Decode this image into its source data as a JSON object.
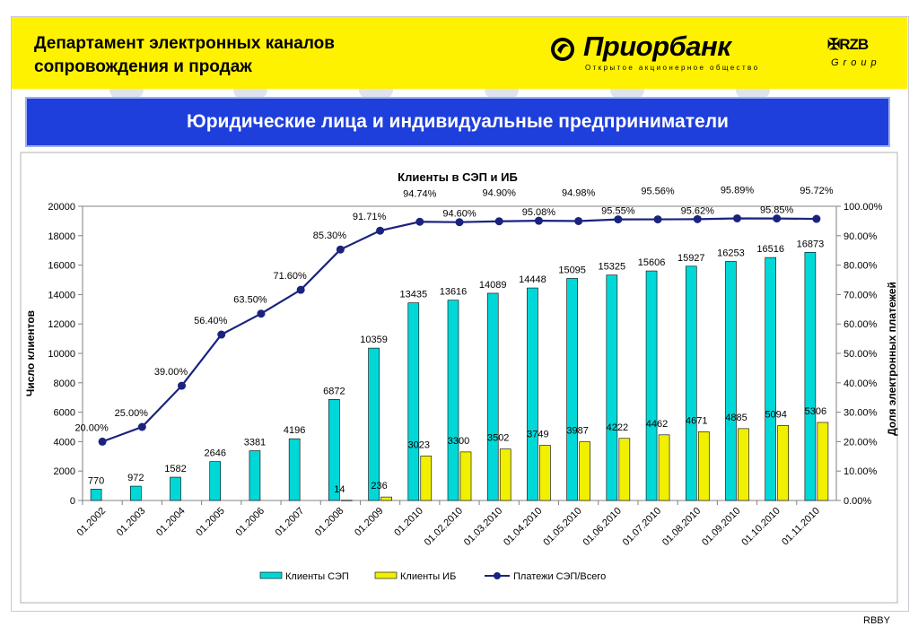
{
  "header": {
    "department": "Департамент электронных каналов сопровождения и продаж",
    "logo_name": "Приорбанк",
    "logo_subtitle": "Открытое акционерное общество",
    "partner_logo": "RZB",
    "partner_group": "Group",
    "logo_icon": "priorbank-emblem-icon",
    "partner_icon": "rzb-cross-icon"
  },
  "banner": {
    "title": "Юридические лица и индивидуальные предприниматели"
  },
  "footer": {
    "text": "RBBY"
  },
  "colors": {
    "header_bg": "#fff200",
    "banner_bg": "#1f3fdc",
    "bar_sep": "#00d8d8",
    "bar_ib": "#f0f000",
    "line": "#1a237e"
  },
  "chart_data": {
    "type": "bar",
    "title": "Клиенты в СЭП и ИБ",
    "ylabel": "Число клиентов",
    "y2label": "Доля электронных платежей",
    "ylim": [
      0,
      20000
    ],
    "yticks": [
      "0",
      "2000",
      "4000",
      "6000",
      "8000",
      "10000",
      "12000",
      "14000",
      "16000",
      "18000",
      "20000"
    ],
    "y2lim": [
      0,
      100
    ],
    "y2ticks": [
      "0.00%",
      "10.00%",
      "20.00%",
      "30.00%",
      "40.00%",
      "50.00%",
      "60.00%",
      "70.00%",
      "80.00%",
      "90.00%",
      "100.00%"
    ],
    "categories": [
      "01.2002",
      "01.2003",
      "01.2004",
      "01.2005",
      "01.2006",
      "01.2007",
      "01.2008",
      "01.2009",
      "01.2010",
      "01.02.2010",
      "01.03.2010",
      "01.04.2010",
      "01.05.2010",
      "01.06.2010",
      "01.07.2010",
      "01.08.2010",
      "01.09.2010",
      "01.10.2010",
      "01.11.2010"
    ],
    "series": [
      {
        "name": "Клиенты СЭП",
        "kind": "bar",
        "values": [
          770,
          972,
          1582,
          2646,
          3381,
          4196,
          6872,
          10359,
          13435,
          13616,
          14089,
          14448,
          15095,
          15325,
          15606,
          15927,
          16253,
          16516,
          16873
        ]
      },
      {
        "name": "Клиенты ИБ",
        "kind": "bar",
        "values": [
          null,
          null,
          null,
          null,
          null,
          null,
          14,
          236,
          3023,
          3300,
          3502,
          3749,
          3987,
          4222,
          4462,
          4671,
          4885,
          5094,
          5306
        ]
      },
      {
        "name": "Платежи СЭП/Всего",
        "kind": "line",
        "axis": "right",
        "values": [
          20.0,
          25.0,
          39.0,
          56.4,
          63.5,
          71.6,
          85.3,
          91.71,
          94.74,
          94.6,
          94.9,
          95.08,
          94.98,
          95.55,
          95.56,
          95.62,
          95.89,
          95.85,
          95.72
        ],
        "labels": [
          "20.00%",
          "25.00%",
          "39.00%",
          "56.40%",
          "63.50%",
          "71.60%",
          "85.30%",
          "91.71%",
          "94.74%",
          "94.60%",
          "94.90%",
          "95.08%",
          "94.98%",
          "95.55%",
          "95.56%",
          "95.62%",
          "95.89%",
          "95.85%",
          "95.72%"
        ]
      }
    ],
    "legend": [
      "Клиенты СЭП",
      "Клиенты ИБ",
      "Платежи СЭП/Всего"
    ],
    "legend_position": "bottom",
    "grid": false
  }
}
